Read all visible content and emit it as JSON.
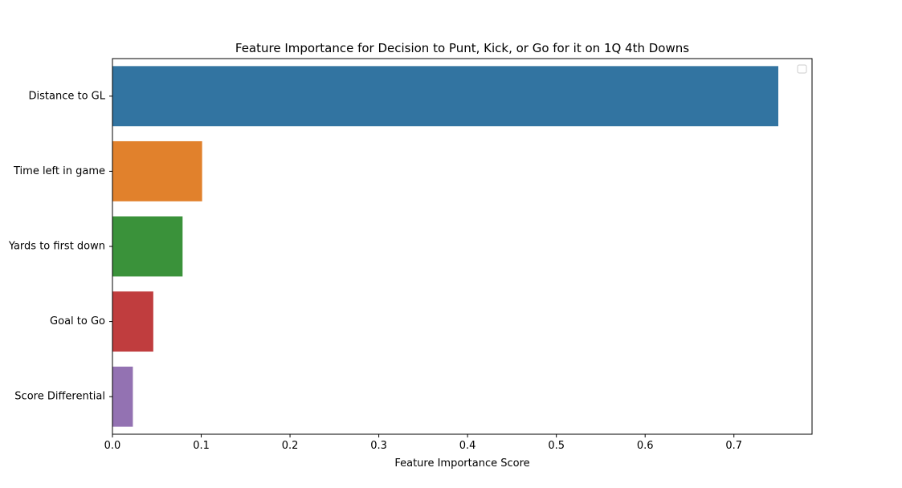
{
  "chart_data": {
    "type": "bar",
    "orientation": "horizontal",
    "title": "Feature Importance for Decision to Punt, Kick, or Go for it on 1Q 4th Downs",
    "xlabel": "Feature Importance Score",
    "ylabel": "",
    "categories": [
      "Distance to GL",
      "Time left in game",
      "Yards to first down",
      "Goal to Go",
      "Score Differential"
    ],
    "values": [
      0.75,
      0.101,
      0.079,
      0.046,
      0.023
    ],
    "colors": [
      "#3274a1",
      "#e1812c",
      "#3a923a",
      "#c03d3e",
      "#9372b2"
    ],
    "xlim": [
      0,
      0.788
    ],
    "xticks": [
      0.0,
      0.1,
      0.2,
      0.3,
      0.4,
      0.5,
      0.6,
      0.7
    ],
    "xtick_labels": [
      "0.0",
      "0.1",
      "0.2",
      "0.3",
      "0.4",
      "0.5",
      "0.6",
      "0.7"
    ],
    "grid": false,
    "legend": {
      "placement": "top-right",
      "entries": []
    }
  }
}
